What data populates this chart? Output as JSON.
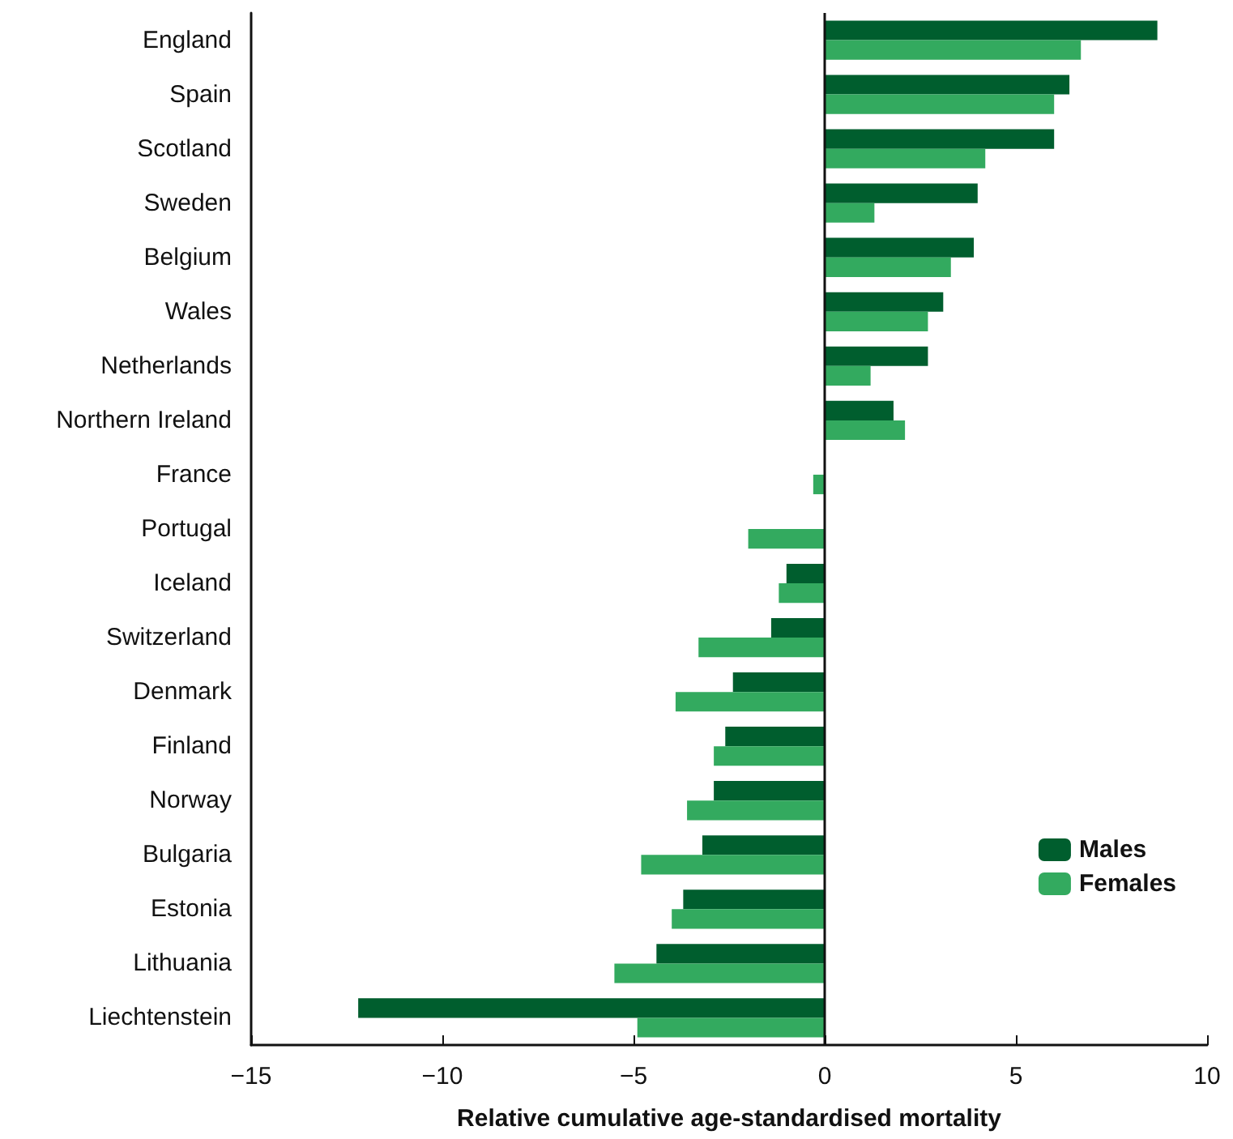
{
  "chart_data": {
    "type": "bar",
    "orientation": "horizontal",
    "xlabel": "Relative cumulative age-standardised mortality",
    "categories": [
      "England",
      "Spain",
      "Scotland",
      "Sweden",
      "Belgium",
      "Wales",
      "Netherlands",
      "Northern Ireland",
      "France",
      "Portugal",
      "Iceland",
      "Switzerland",
      "Denmark",
      "Finland",
      "Norway",
      "Bulgaria",
      "Estonia",
      "Lithuania",
      "Liechtenstein"
    ],
    "series": [
      {
        "name": "Males",
        "color": "#005e2e",
        "values": [
          8.7,
          6.4,
          6.0,
          4.0,
          3.9,
          3.1,
          2.7,
          1.8,
          0,
          0,
          -1.0,
          -1.4,
          -2.4,
          -2.6,
          -2.9,
          -3.2,
          -3.7,
          -4.4,
          -12.2
        ]
      },
      {
        "name": "Females",
        "color": "#33aa5f",
        "values": [
          6.7,
          6.0,
          4.2,
          1.3,
          3.3,
          2.7,
          1.2,
          2.1,
          -0.3,
          -2.0,
          -1.2,
          -3.3,
          -3.9,
          -2.9,
          -3.6,
          -4.8,
          -4.0,
          -5.5,
          -4.9
        ]
      }
    ],
    "xlim": [
      -15,
      10
    ],
    "xticks": [
      {
        "value": -15,
        "label": "−15"
      },
      {
        "value": -10,
        "label": "−10"
      },
      {
        "value": -5,
        "label": "−5"
      },
      0,
      5,
      10
    ],
    "ref_lines": [
      {
        "axis": "x",
        "value": 0,
        "color": "#111111"
      }
    ],
    "legend": "bottom right",
    "grid": false
  }
}
